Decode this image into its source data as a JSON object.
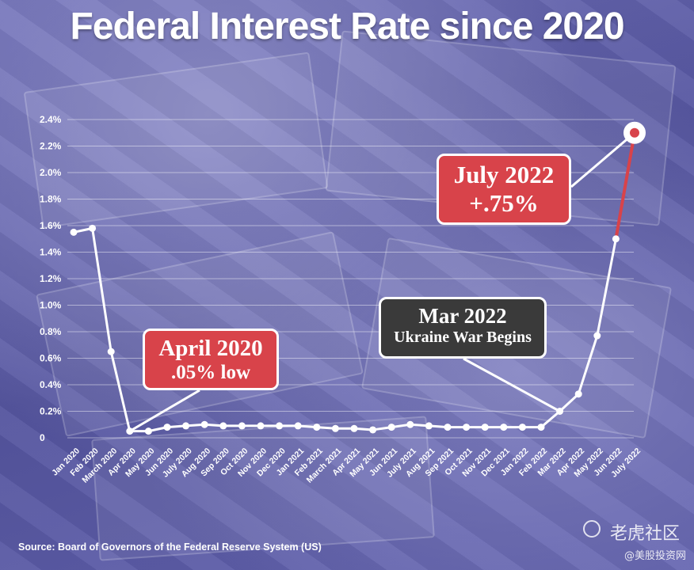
{
  "title": "Federal Interest Rate since 2020",
  "source": "Source: Board of Governors of the Federal Reserve System (US)",
  "watermark": {
    "line1": "老虎社区",
    "line2": "@美股投资网"
  },
  "callouts": {
    "april2020": {
      "line1": "April 2020",
      "line2": ".05% low"
    },
    "mar2022": {
      "line1": "Mar 2022",
      "line2": "Ukraine War Begins"
    },
    "july2022": {
      "line1": "July 2022",
      "line2": "+.75%"
    }
  },
  "colors": {
    "line": "#ffffff",
    "accent": "#d8434a",
    "background": "#5a5aa6"
  },
  "chart_data": {
    "type": "line",
    "title": "Federal Interest Rate since 2020",
    "xlabel": "",
    "ylabel": "",
    "ylim": [
      0,
      2.4
    ],
    "yticks": [
      0,
      0.2,
      0.4,
      0.6,
      0.8,
      1.0,
      1.2,
      1.4,
      1.6,
      1.8,
      2.0,
      2.2,
      2.4
    ],
    "ytick_labels": [
      "0",
      "0.2%",
      "0.4%",
      "0.6%",
      "0.8%",
      "1.0%",
      "1.2%",
      "1.4%",
      "1.6%",
      "1.8%",
      "2.0%",
      "2.2%",
      "2.4%"
    ],
    "grid": true,
    "categories": [
      "Jan 2020",
      "Feb 2020",
      "March 2020",
      "Apr 2020",
      "May 2020",
      "Jun 2020",
      "July 2020",
      "Aug 2020",
      "Sep 2020",
      "Oct 2020",
      "Nov 2020",
      "Dec 2020",
      "Jan 2021",
      "Feb 2021",
      "March 2021",
      "Apr 2021",
      "May 2021",
      "Jun 2021",
      "July 2021",
      "Aug 2021",
      "Sep 2021",
      "Oct 2021",
      "Nov 2021",
      "Dec 2021",
      "Jan 2022",
      "Feb 2022",
      "Mar 2022",
      "Apr 2022",
      "May 2022",
      "Jun 2022",
      "July 2022"
    ],
    "values": [
      1.55,
      1.58,
      0.65,
      0.05,
      0.05,
      0.08,
      0.09,
      0.1,
      0.09,
      0.09,
      0.09,
      0.09,
      0.09,
      0.08,
      0.07,
      0.07,
      0.06,
      0.08,
      0.1,
      0.09,
      0.08,
      0.08,
      0.08,
      0.08,
      0.08,
      0.08,
      0.2,
      0.33,
      0.77,
      1.5,
      2.3
    ]
  }
}
